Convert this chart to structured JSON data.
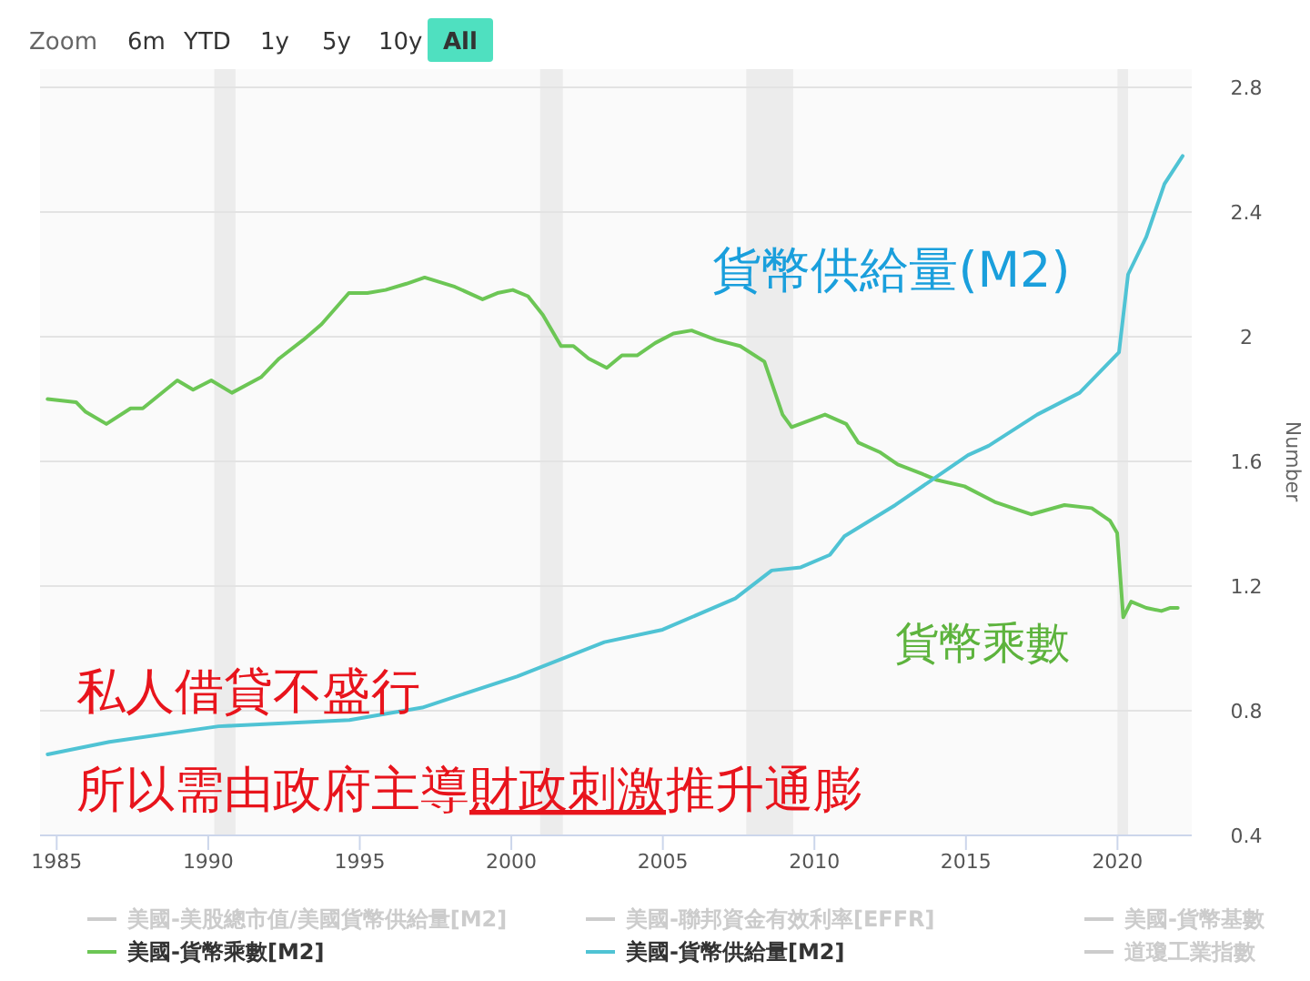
{
  "chart_data": {
    "type": "line",
    "ylabel": "Number",
    "xlim": [
      1984.45,
      2022.45
    ],
    "xticks": [
      1985,
      1990,
      1995,
      2000,
      2005,
      2010,
      2015,
      2020
    ],
    "ylim": [
      0.4,
      2.8
    ],
    "yticks": [
      0.4,
      0.8,
      1.2,
      1.6,
      2,
      2.4,
      2.8
    ],
    "grid": "y",
    "legend": "bottom",
    "marker": "none",
    "bands": [
      {
        "axis": "x",
        "from": 1990.2,
        "to": 1990.9,
        "color": "#ececec"
      },
      {
        "axis": "x",
        "from": 2000.95,
        "to": 2001.7,
        "color": "#ececec"
      },
      {
        "axis": "x",
        "from": 2007.75,
        "to": 2009.3,
        "color": "#ececec"
      },
      {
        "axis": "x",
        "from": 2020.0,
        "to": 2020.35,
        "color": "#ececec"
      }
    ],
    "annotations": [
      "Zoom",
      "6m",
      "YTD",
      "1y",
      "5y",
      "10y",
      "All",
      "貨幣供給量(M2)",
      "貨幣乘數",
      "私人借貸不盛行",
      "所以需由政府主導財政刺激推升通膨"
    ],
    "series": [
      {
        "name": "美國-美股總市值/美國貨幣供給量[M2]",
        "color": "#cccccc"
      },
      {
        "name": "美國-聯邦資金有效利率[EFFR]",
        "color": "#cccccc"
      },
      {
        "name": "美國-貨幣基數",
        "color": "#cccccc"
      },
      {
        "name": "美國-貨幣乘數[M2]",
        "color": "#6cc655",
        "x": [
          1984.7,
          1985.64,
          1985.94,
          1986.64,
          1987.44,
          1987.84,
          1988.98,
          1989.5,
          1990.1,
          1990.78,
          1991.74,
          1992.34,
          1993.14,
          1993.74,
          1994.64,
          1995.25,
          1995.85,
          1996.54,
          1997.14,
          1998.14,
          1999.05,
          1999.54,
          2000.05,
          2000.55,
          2001.04,
          2001.64,
          2002.05,
          2002.55,
          2003.15,
          2003.65,
          2004.15,
          2004.75,
          2005.35,
          2005.95,
          2006.75,
          2007.55,
          2008.35,
          2008.95,
          2009.25,
          2010.35,
          2011.05,
          2011.45,
          2012.15,
          2012.75,
          2013.55,
          2014.05,
          2014.95,
          2015.95,
          2017.15,
          2018.25,
          2019.15,
          2019.75,
          2019.99,
          2020.19,
          2020.45,
          2020.95,
          2021.45,
          2021.75,
          2021.99
        ],
        "values": [
          1.8,
          1.79,
          1.76,
          1.72,
          1.77,
          1.77,
          1.86,
          1.83,
          1.86,
          1.82,
          1.87,
          1.93,
          1.99,
          2.04,
          2.14,
          2.14,
          2.15,
          2.17,
          2.19,
          2.16,
          2.12,
          2.14,
          2.15,
          2.13,
          2.07,
          1.97,
          1.97,
          1.93,
          1.9,
          1.94,
          1.94,
          1.98,
          2.01,
          2.02,
          1.99,
          1.97,
          1.92,
          1.75,
          1.71,
          1.75,
          1.72,
          1.66,
          1.63,
          1.59,
          1.56,
          1.54,
          1.52,
          1.47,
          1.43,
          1.46,
          1.45,
          1.41,
          1.37,
          1.1,
          1.15,
          1.13,
          1.12,
          1.13,
          1.13
        ]
      },
      {
        "name": "美國-貨幣供給量[M2]",
        "color": "#4fc3d4",
        "x": [
          1984.7,
          1986.74,
          1990.34,
          1994.66,
          1997.06,
          2000.19,
          2003.07,
          2004.99,
          2007.39,
          2008.59,
          2009.55,
          2010.51,
          2010.99,
          2012.67,
          2015.07,
          2015.75,
          2017.35,
          2018.75,
          2020.05,
          2020.35,
          2020.95,
          2021.55,
          2022.15
        ],
        "values": [
          0.66,
          0.7,
          0.75,
          0.77,
          0.81,
          0.91,
          1.02,
          1.06,
          1.16,
          1.25,
          1.26,
          1.3,
          1.36,
          1.46,
          1.62,
          1.65,
          1.75,
          1.82,
          1.95,
          2.2,
          2.32,
          2.49,
          2.58
        ]
      },
      {
        "name": "道瓊工業指數",
        "color": "#cccccc"
      }
    ]
  }
}
